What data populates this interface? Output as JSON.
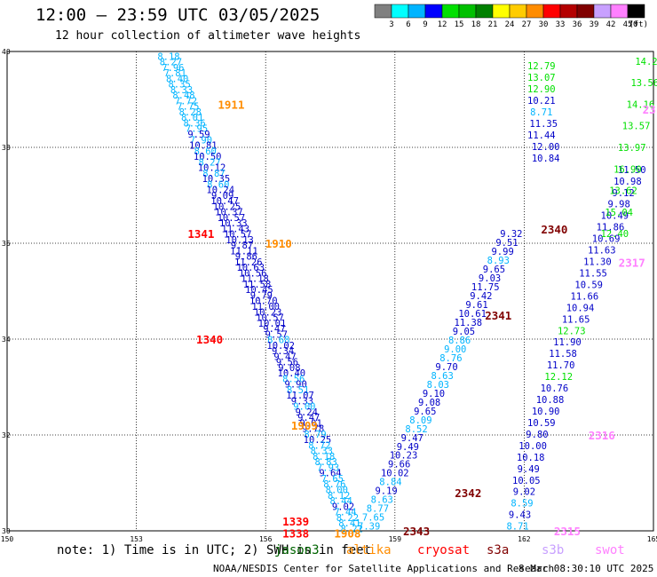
{
  "title": "12:00 – 23:59 UTC 03/05/2025",
  "subtitle": "12 hour collection of altimeter wave heights",
  "colorbar": {
    "unit": "(ft)",
    "colors": [
      "#808080",
      "#00ffff",
      "#00b4ff",
      "#0000ff",
      "#00e000",
      "#00c000",
      "#008000",
      "#ffff00",
      "#ffcc00",
      "#ff8c00",
      "#ff0000",
      "#b40000",
      "#800000",
      "#c8a0ff",
      "#ff80ff",
      "#000000"
    ],
    "ticks": [
      "3",
      "6",
      "9",
      "12",
      "15",
      "18",
      "21",
      "24",
      "27",
      "30",
      "33",
      "36",
      "39",
      "42",
      "45",
      "70"
    ]
  },
  "map": {
    "lon_range": [
      150,
      165
    ],
    "lat_range": [
      30,
      40
    ],
    "lon_ticks": [
      "150",
      "153",
      "156",
      "159",
      "162",
      "165"
    ],
    "lat_ticks": [
      "40",
      "38",
      "36",
      "34",
      "32",
      "30"
    ]
  },
  "chart_data": {
    "type": "scatter",
    "xlabel": "",
    "ylabel": "",
    "xlim": [
      150,
      165
    ],
    "ylim": [
      30,
      40
    ],
    "height_color_bins": [
      {
        "max": 9,
        "color": "#00b4ff"
      },
      {
        "max": 12,
        "color": "#0000c8"
      },
      {
        "max": 18,
        "color": "#00e000"
      },
      {
        "max": 24,
        "color": "#008000"
      },
      {
        "max": 99,
        "color": "#ff80ff"
      }
    ],
    "tracks": [
      {
        "values": [
          "8.18",
          "8.27",
          "7.96",
          "7.81",
          "8.40",
          "8.35",
          "8.33",
          "8.48",
          "7.72",
          "7.75",
          "8.28",
          "8.01",
          "8.36",
          "7.95",
          "9.59",
          "7.90",
          "10.81",
          "8.60",
          "10.50",
          "8.27",
          "10.12",
          "8.87",
          "10.35",
          "8.60",
          "10.24",
          "9.09",
          "10.47",
          "10.25",
          "10.37",
          "10.57",
          "10.33",
          "11.43",
          "10.57",
          "10.13",
          "9.87",
          "11.11",
          "9.86",
          "11.26",
          "10.63",
          "10.56",
          "11.18",
          "11.58",
          "10.45",
          "9.79",
          "10.70",
          "11.00",
          "10.23",
          "10.57",
          "10.01",
          "9.47",
          "9.57",
          "8.68",
          "10.02",
          "9.34",
          "9.47",
          "9.56",
          "9.08",
          "10.40",
          "8.56",
          "9.90",
          "8.51",
          "11.07",
          "9.33",
          "9.00",
          "9.24",
          "9.47",
          "9.01",
          "9.78",
          "8.79",
          "10.25",
          "8.72",
          "8.33",
          "8.18",
          "8.83",
          "7.93",
          "9.64",
          "7.65",
          "8.76",
          "8.00",
          "8.12",
          "8.44",
          "9.02",
          "7.44",
          "8.22",
          "8.41",
          "8.22"
        ],
        "lon": [
          153.75,
          153.8,
          153.85,
          153.9,
          153.95,
          154.0,
          154.05,
          154.1,
          154.15,
          154.2,
          154.25,
          154.3,
          154.35,
          154.4,
          154.45,
          154.5,
          154.55,
          154.6,
          154.65,
          154.7,
          154.75,
          154.8,
          154.85,
          154.9,
          154.95,
          155.0,
          155.05,
          155.1,
          155.15,
          155.2,
          155.25,
          155.3,
          155.35,
          155.4,
          155.45,
          155.5,
          155.55,
          155.6,
          155.65,
          155.7,
          155.75,
          155.8,
          155.85,
          155.9,
          155.95,
          156.0,
          156.05,
          156.1,
          156.15,
          156.2,
          156.25,
          156.3,
          156.35,
          156.4,
          156.45,
          156.5,
          156.55,
          156.6,
          156.65,
          156.7,
          156.75,
          156.8,
          156.85,
          156.9,
          156.95,
          157.0,
          157.05,
          157.1,
          157.15,
          157.2,
          157.25,
          157.3,
          157.35,
          157.4,
          157.45,
          157.5,
          157.55,
          157.6,
          157.65,
          157.7,
          157.75,
          157.8,
          157.85,
          157.9,
          157.95,
          158.0
        ]
      },
      {
        "values": [
          "9.32",
          "9.51",
          "9.99",
          "8.93",
          "9.65",
          "9.03",
          "11.75",
          "9.42",
          "9.61",
          "10.61",
          "11.38",
          "9.05",
          "8.86",
          "9.00",
          "8.76",
          "9.70",
          "8.63",
          "8.03",
          "9.10",
          "9.08",
          "9.65",
          "8.09",
          "8.52",
          "9.47",
          "9.49",
          "10.23",
          "9.66",
          "10.02",
          "8.84",
          "9.19",
          "8.63",
          "8.77",
          "7.65",
          "7.39"
        ],
        "lon": [
          161.7,
          161.6,
          161.5,
          161.4,
          161.3,
          161.2,
          161.1,
          161.0,
          160.9,
          160.8,
          160.7,
          160.6,
          160.5,
          160.4,
          160.3,
          160.2,
          160.1,
          160.0,
          159.9,
          159.8,
          159.7,
          159.6,
          159.5,
          159.4,
          159.3,
          159.2,
          159.1,
          159.0,
          158.9,
          158.8,
          158.7,
          158.6,
          158.5,
          158.4
        ]
      },
      {
        "values": [
          "12.79",
          "13.07",
          "12.90",
          "10.21",
          "8.71",
          "11.35",
          "11.44",
          "12.00",
          "10.84",
          "11.50",
          "10.98",
          "9.12",
          "9.98",
          "10.49",
          "11.86",
          "10.69",
          "11.63",
          "11.30",
          "11.55",
          "10.59",
          "11.66",
          "10.94",
          "11.65",
          "12.73",
          "11.90",
          "11.58",
          "11.70",
          "12.12",
          "10.76",
          "10.88",
          "10.90",
          "10.59",
          "9.80",
          "10.00",
          "10.18",
          "9.49",
          "10.05",
          "9.02",
          "8.59",
          "9.43",
          "8.71"
        ],
        "lon": [
          162.4,
          162.4,
          162.4,
          162.4,
          162.4,
          162.45,
          162.4,
          162.5,
          162.5,
          164.5,
          164.4,
          164.3,
          164.2,
          164.1,
          164.0,
          163.9,
          163.8,
          163.7,
          163.6,
          163.5,
          163.4,
          163.3,
          163.2,
          163.1,
          163.0,
          162.9,
          162.85,
          162.8,
          162.7,
          162.6,
          162.5,
          162.4,
          162.3,
          162.2,
          162.15,
          162.1,
          162.05,
          162.0,
          161.95,
          161.9,
          161.85
        ]
      },
      {
        "values": [
          "14.26",
          "13.56",
          "14.16",
          "13.57",
          "13.97",
          "16.90",
          "13.62",
          "15.04",
          "12.40"
        ],
        "lon": [
          164.9,
          164.8,
          164.7,
          164.6,
          164.5,
          164.4,
          164.3,
          164.2,
          164.1
        ]
      }
    ],
    "pass_labels": [
      {
        "text": "1911",
        "satellite": "altika"
      },
      {
        "text": "1341",
        "satellite": "cryosat"
      },
      {
        "text": "1910",
        "satellite": "altika"
      },
      {
        "text": "1340",
        "satellite": "cryosat"
      },
      {
        "text": "1909",
        "satellite": "altika"
      },
      {
        "text": "1339",
        "satellite": "cryosat"
      },
      {
        "text": "1338",
        "satellite": "cryosat"
      },
      {
        "text": "1908",
        "satellite": "altika"
      },
      {
        "text": "2340",
        "satellite": "s3a"
      },
      {
        "text": "2341",
        "satellite": "s3a"
      },
      {
        "text": "2342",
        "satellite": "s3a"
      },
      {
        "text": "2343",
        "satellite": "s3a"
      },
      {
        "text": "23",
        "satellite": "swot"
      },
      {
        "text": "2317",
        "satellite": "swot"
      },
      {
        "text": "2316",
        "satellite": "swot"
      },
      {
        "text": "2315",
        "satellite": "swot"
      }
    ]
  },
  "footer": {
    "note": "note: 1) Time is in UTC; 2) SWH is in feet",
    "satellites": [
      {
        "name": "jason3",
        "color": "#006400"
      },
      {
        "name": "altika",
        "color": "#ff8c00"
      },
      {
        "name": "cryosat",
        "color": "#ff0000"
      },
      {
        "name": "s3a",
        "color": "#800000"
      },
      {
        "name": "s3b",
        "color": "#c8a0ff"
      },
      {
        "name": "swot",
        "color": "#ff80ff"
      }
    ],
    "credit": "NOAA/NESDIS Center for Satellite Applications and Research",
    "timestamp": "8 Mar 08:30:10 UTC 2025"
  }
}
